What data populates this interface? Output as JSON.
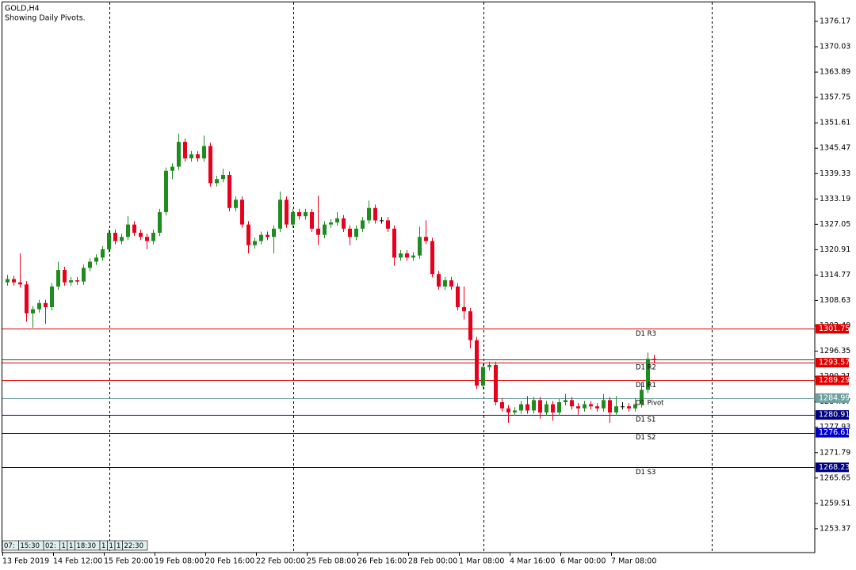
{
  "chart_data": {
    "type": "candlestick",
    "title": "GOLD,H4",
    "subtitle": "Showing Daily Pivots.",
    "x_labels": [
      "13 Feb 2019",
      "14 Feb 12:00",
      "15 Feb 20:00",
      "19 Feb 08:00",
      "20 Feb 16:00",
      "22 Feb 00:00",
      "25 Feb 08:00",
      "26 Feb 16:00",
      "28 Feb 00:00",
      "1 Mar 08:00",
      "4 Mar 16:00",
      "6 Mar 00:00",
      "7 Mar 08:00"
    ],
    "open": [
      1313,
      1313.8,
      1313,
      1312.5,
      1305.5,
      1306.5,
      1308,
      1307,
      1312,
      1316,
      1313,
      1313.5,
      1313.2,
      1316.5,
      1318,
      1319,
      1321,
      1325,
      1323,
      1324,
      1327,
      1325,
      1324,
      1323,
      1325,
      1330,
      1340,
      1341,
      1347,
      1343,
      1344,
      1343,
      1346,
      1337,
      1338,
      1339,
      1331,
      1333,
      1327,
      1322,
      1323,
      1324.5,
      1324,
      1326,
      1333,
      1327,
      1330,
      1329,
      1330,
      1326,
      1324.5,
      1327,
      1327.5,
      1328.5,
      1326,
      1324,
      1326,
      1328,
      1331,
      1328,
      1328,
      1326,
      1319,
      1320,
      1319,
      1319.5,
      1324,
      1323,
      1315,
      1312,
      1313.5,
      1312,
      1307,
      1306,
      1299,
      1288,
      1292.5,
      1293,
      1284,
      1282.5,
      1281.5,
      1282,
      1283.5,
      1282,
      1284.5,
      1281.5,
      1283.5,
      1281.5,
      1284,
      1284.5,
      1283,
      1282.5,
      1283.5,
      1283,
      1282.5,
      1284.5,
      1281.5,
      1283,
      1283,
      1282.5,
      1283.5,
      1287,
      1294.5
    ],
    "high": [
      1314.8,
      1314.6,
      1320,
      1313.3,
      1307.3,
      1308.8,
      1308.8,
      1312.8,
      1318,
      1316.8,
      1314.3,
      1314.3,
      1317.3,
      1318.8,
      1319.8,
      1321.8,
      1325.8,
      1325.8,
      1324.8,
      1329,
      1327.8,
      1325.8,
      1324.8,
      1325.8,
      1330.8,
      1340.8,
      1341.8,
      1349,
      1347.8,
      1344.8,
      1344.8,
      1348.5,
      1346.8,
      1338.8,
      1340.5,
      1339.8,
      1333.8,
      1333.8,
      1327.8,
      1323.8,
      1325.3,
      1325.3,
      1326.8,
      1335,
      1333.8,
      1330.8,
      1330.8,
      1330.8,
      1330.8,
      1334,
      1327.8,
      1328.3,
      1330,
      1329.3,
      1326.8,
      1326.8,
      1328.8,
      1332.8,
      1331.8,
      1328.8,
      1328.8,
      1326.8,
      1320.8,
      1320.8,
      1320.3,
      1326.5,
      1328,
      1323.8,
      1315.8,
      1314.3,
      1314.3,
      1312.8,
      1312,
      1306.8,
      1299.8,
      1293.3,
      1293.8,
      1293.8,
      1285,
      1283.3,
      1282.8,
      1284.3,
      1285.5,
      1285.3,
      1285.3,
      1284.3,
      1284.3,
      1284.8,
      1286,
      1285.3,
      1283.8,
      1284.3,
      1284.3,
      1283.8,
      1286,
      1285.3,
      1285.5,
      1284,
      1283.8,
      1285,
      1288.8,
      1296,
      1295.5
    ],
    "low": [
      1312.2,
      1312.2,
      1311.7,
      1303.5,
      1302,
      1305.7,
      1303,
      1306.2,
      1311.2,
      1312.2,
      1312.2,
      1312.4,
      1312.4,
      1315.7,
      1317.2,
      1318.2,
      1320.2,
      1322.2,
      1322.2,
      1323.2,
      1324.2,
      1323.2,
      1321,
      1322.2,
      1324.2,
      1329.2,
      1338,
      1340.2,
      1342.2,
      1342.2,
      1342.2,
      1342.2,
      1336.2,
      1336.2,
      1337.2,
      1330.2,
      1330.2,
      1326.2,
      1320,
      1321.2,
      1322.2,
      1323.2,
      1320,
      1325.2,
      1326.2,
      1326.2,
      1328.2,
      1328.2,
      1325.2,
      1322,
      1323.7,
      1326.2,
      1326.7,
      1325.2,
      1322,
      1323.2,
      1325.2,
      1327.2,
      1327.2,
      1327.2,
      1325.2,
      1317,
      1318.2,
      1318.2,
      1318.2,
      1318.7,
      1322.2,
      1314.2,
      1311.2,
      1311.2,
      1311.2,
      1306.2,
      1304,
      1297,
      1287.2,
      1287.2,
      1291.7,
      1283.2,
      1281.7,
      1279,
      1280.7,
      1281.2,
      1281.2,
      1281.2,
      1280,
      1280.7,
      1279.5,
      1280.7,
      1283.2,
      1282.2,
      1281,
      1281.7,
      1282.2,
      1281.7,
      1281.7,
      1279,
      1280.7,
      1282.2,
      1281.7,
      1281.7,
      1282.7,
      1286.2,
      1293.5
    ],
    "close": [
      1313.8,
      1313,
      1312.5,
      1305.5,
      1306.5,
      1308,
      1307,
      1312,
      1316,
      1313,
      1313.5,
      1313.2,
      1316.5,
      1318,
      1319,
      1321,
      1325,
      1323,
      1324,
      1327,
      1325,
      1324,
      1323,
      1325,
      1330,
      1340,
      1341,
      1347,
      1343,
      1344,
      1343,
      1346,
      1337,
      1338,
      1339,
      1331,
      1333,
      1327,
      1322,
      1323,
      1324.5,
      1324,
      1326,
      1333,
      1327,
      1330,
      1329,
      1330,
      1326,
      1324.5,
      1327,
      1327.5,
      1328.5,
      1326,
      1324,
      1326,
      1328,
      1331,
      1328,
      1328,
      1326,
      1319,
      1320,
      1319,
      1319.5,
      1324,
      1323,
      1315,
      1312,
      1313.5,
      1312,
      1307,
      1306,
      1299,
      1288,
      1292.5,
      1293,
      1284,
      1282.5,
      1281.5,
      1282,
      1283.5,
      1282,
      1284.5,
      1281.5,
      1283.5,
      1281.5,
      1284,
      1284.5,
      1283,
      1282.5,
      1283.5,
      1283,
      1282.5,
      1284.5,
      1281.5,
      1283,
      1283,
      1282.5,
      1283.5,
      1287,
      1294.5,
      1294.3
    ],
    "bull_color": "#1e8c1e",
    "bear_color": "#e8001c",
    "ylim": [
      1247.6,
      1381.34
    ],
    "yticks": [
      {
        "value": 1376.17,
        "label": "1376.17"
      },
      {
        "value": 1370.03,
        "label": "1370.03"
      },
      {
        "value": 1363.89,
        "label": "1363.89"
      },
      {
        "value": 1357.75,
        "label": "1357.75"
      },
      {
        "value": 1351.61,
        "label": "1351.61"
      },
      {
        "value": 1345.47,
        "label": "1345.47"
      },
      {
        "value": 1339.33,
        "label": "1339.33"
      },
      {
        "value": 1333.19,
        "label": "1333.19"
      },
      {
        "value": 1327.05,
        "label": "1327.05"
      },
      {
        "value": 1320.91,
        "label": "1320.91"
      },
      {
        "value": 1314.77,
        "label": "1314.77"
      },
      {
        "value": 1308.63,
        "label": "1308.63"
      },
      {
        "value": 1302.49,
        "label": "1302.49"
      },
      {
        "value": 1296.35,
        "label": "1296.35"
      },
      {
        "value": 1290.21,
        "label": "1290.21"
      },
      {
        "value": 1284.07,
        "label": "1284.07"
      },
      {
        "value": 1277.93,
        "label": "1277.93"
      },
      {
        "value": 1271.79,
        "label": "1271.79"
      },
      {
        "value": 1265.65,
        "label": "1265.65"
      },
      {
        "value": 1259.51,
        "label": "1259.51"
      },
      {
        "value": 1253.37,
        "label": "1253.37"
      }
    ],
    "price_line": 1294.4,
    "levels": [
      {
        "name": "D1 R3",
        "value": 1301.75,
        "color": "#e00000"
      },
      {
        "name": "D1 R2",
        "value": 1293.57,
        "color": "#e00000"
      },
      {
        "name": "D1 R1",
        "value": 1289.29,
        "color": "#e00000"
      },
      {
        "name": "D1 Pivot",
        "value": 1284.99,
        "color": "#6f9f9f"
      },
      {
        "name": "D1 S1",
        "value": 1280.91,
        "color": "#000080"
      },
      {
        "name": "D1 S2",
        "value": 1276.61,
        "color": "#0000cd"
      },
      {
        "name": "D1 S3",
        "value": 1268.23,
        "color": "#000080"
      }
    ],
    "period_labels": [
      "07:",
      "15:30",
      "02:",
      "1",
      "1",
      "18:30",
      "1",
      "1",
      "1",
      "22:30"
    ]
  }
}
